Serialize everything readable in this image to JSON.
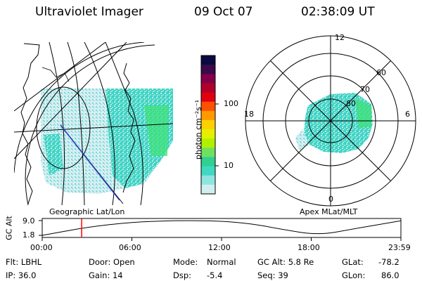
{
  "header": {
    "title": "Ultraviolet Imager",
    "date": "09 Oct 07",
    "time": "02:38:09 UT"
  },
  "left_panel": {
    "label": "Geographic Lat/Lon"
  },
  "right_panel": {
    "label": "Apex MLat/MLT",
    "mlt_labels": [
      "12",
      "18",
      "6",
      "0"
    ],
    "lat_labels": [
      "60",
      "70",
      "80"
    ]
  },
  "colorbar": {
    "unit_label": "photon cm⁻²s⁻¹",
    "ticks": [
      "100",
      "10"
    ],
    "colors": [
      "#0a0a40",
      "#3a0a4a",
      "#80004a",
      "#b0002a",
      "#e00010",
      "#ff5000",
      "#ff9a00",
      "#ffd000",
      "#e4f000",
      "#b0f000",
      "#70e060",
      "#30d090",
      "#40d8c0",
      "#90e4e0",
      "#cfeef0"
    ]
  },
  "chart_data": {
    "type": "line",
    "title": "",
    "ylabel": "GC Alt",
    "yticks": [
      "9.0",
      "1.8"
    ],
    "xticks": [
      "00:00",
      "06:00",
      "12:00",
      "18:00",
      "23:59"
    ],
    "x_hours": [
      0,
      3,
      6,
      8.5,
      10.5,
      12,
      14,
      16,
      18.5,
      21,
      24
    ],
    "y_re": [
      1.8,
      5.8,
      8.2,
      8.9,
      9.0,
      8.7,
      7.5,
      4.8,
      1.8,
      5.2,
      8.9
    ],
    "ylim": [
      1.8,
      9.0
    ],
    "xlim": [
      0,
      24
    ],
    "marker_hour": 2.64,
    "marker_color": "#ff0000"
  },
  "info": {
    "flt": "Flt: LBHL",
    "ip": "IP: 36.0",
    "door": "Door: Open",
    "gain": "Gain: 14",
    "mode_label": "Mode:",
    "mode_value": "Normal",
    "dsp_label": "Dsp:",
    "dsp_value": "-5.4",
    "gcalt": "GC Alt: 5.8 Re",
    "seq": "Seq: 39",
    "glat_label": "GLat:",
    "glat_value": "-78.2",
    "glon_label": "GLon:",
    "glon_value": "86.0"
  }
}
